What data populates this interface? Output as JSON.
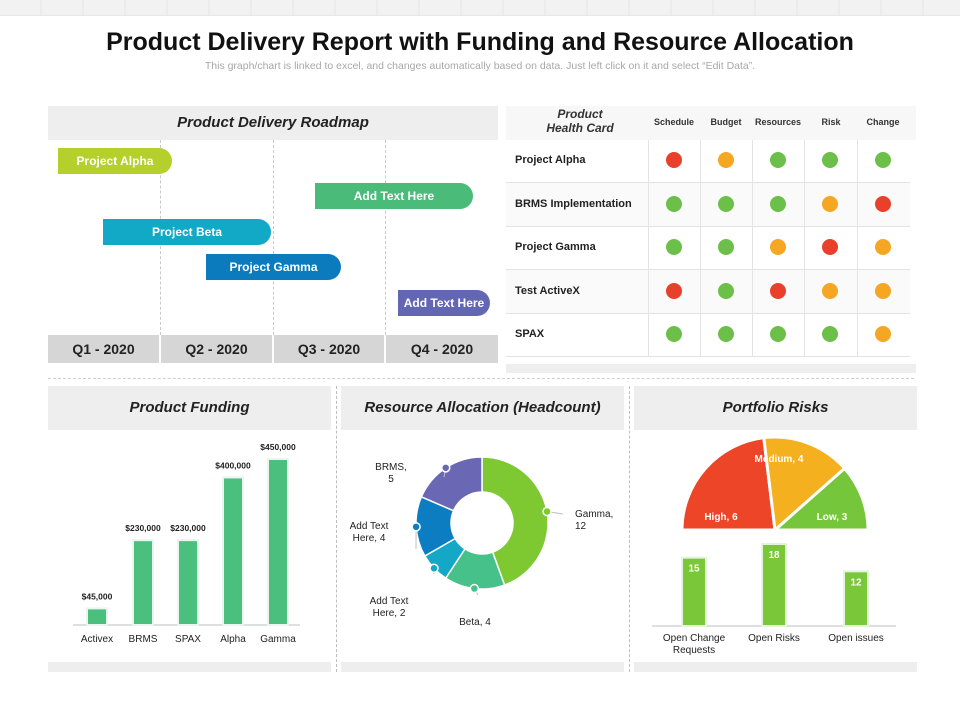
{
  "header": {
    "title": "Product Delivery Report with Funding and Resource Allocation",
    "subtitle": "This graph/chart is linked to excel, and changes automatically based on data. Just left click on it and select “Edit Data”."
  },
  "roadmap": {
    "title": "Product Delivery Roadmap",
    "quarters": [
      "Q1 - 2020",
      "Q2 - 2020",
      "Q3 - 2020",
      "Q4 - 2020"
    ],
    "bars": [
      {
        "label": "Project Alpha",
        "color": "#b5cf2d"
      },
      {
        "label": "Add Text Here",
        "color": "#4bbb7a"
      },
      {
        "label": "Project Beta",
        "color": "#12a9c6"
      },
      {
        "label": "Project Gamma",
        "color": "#0b7bbd"
      },
      {
        "label": "Add Text Here",
        "color": "#6367b3"
      }
    ]
  },
  "health_card": {
    "title_line1": "Product",
    "title_line2": "Health Card",
    "columns": [
      "Schedule",
      "Budget",
      "Resources",
      "Risk",
      "Change"
    ],
    "status_colors": {
      "red": "#e8402a",
      "amber": "#f5a623",
      "green": "#6cc04a"
    },
    "rows": [
      {
        "name": "Project Alpha",
        "status": [
          "red",
          "amber",
          "green",
          "green",
          "green"
        ]
      },
      {
        "name": "BRMS Implementation",
        "status": [
          "green",
          "green",
          "green",
          "amber",
          "red"
        ]
      },
      {
        "name": "Project Gamma",
        "status": [
          "green",
          "green",
          "amber",
          "red",
          "amber"
        ]
      },
      {
        "name": "Test ActiveX",
        "status": [
          "red",
          "green",
          "red",
          "amber",
          "amber"
        ]
      },
      {
        "name": "SPAX",
        "status": [
          "green",
          "green",
          "green",
          "green",
          "amber"
        ]
      }
    ]
  },
  "funding": {
    "title": "Product Funding"
  },
  "resource": {
    "title": "Resource Allocation (Headcount)"
  },
  "risks": {
    "title": "Portfolio Risks"
  },
  "chart_data": [
    {
      "type": "bar",
      "title": "Product Funding",
      "categories": [
        "Activex",
        "BRMS",
        "SPAX",
        "Alpha",
        "Gamma"
      ],
      "values": [
        45000,
        230000,
        230000,
        400000,
        450000
      ],
      "value_labels": [
        "$45,000",
        "$230,000",
        "$230,000",
        "$400,000",
        "$450,000"
      ],
      "color": "#4bbf7d",
      "ylim": [
        0,
        450000
      ]
    },
    {
      "type": "pie",
      "title": "Resource Allocation (Headcount)",
      "donut": true,
      "slices": [
        {
          "label": "Gamma, 12",
          "value": 12,
          "color": "#7ec832"
        },
        {
          "label": "Beta, 4",
          "value": 4,
          "color": "#46c189"
        },
        {
          "label": "Add Text Here, 2",
          "value": 2,
          "color": "#14a8c6"
        },
        {
          "label": "Add Text Here, 4",
          "value": 4,
          "color": "#0c7dc0"
        },
        {
          "label": "BRMS, 5",
          "value": 5,
          "color": "#6a67b4"
        }
      ]
    },
    {
      "type": "pie",
      "title": "Portfolio Risks",
      "half": true,
      "slices": [
        {
          "label": "High, 6",
          "value": 6,
          "color": "#ec4527"
        },
        {
          "label": "Medium, 4",
          "value": 4,
          "color": "#f5b01f"
        },
        {
          "label": "Low, 3",
          "value": 3,
          "color": "#76c63b"
        }
      ]
    },
    {
      "type": "bar",
      "categories": [
        "Open Change Requests",
        "Open Risks",
        "Open issues"
      ],
      "values": [
        15,
        18,
        12
      ],
      "color": "#7ac83a",
      "ylim": [
        0,
        18
      ]
    }
  ]
}
